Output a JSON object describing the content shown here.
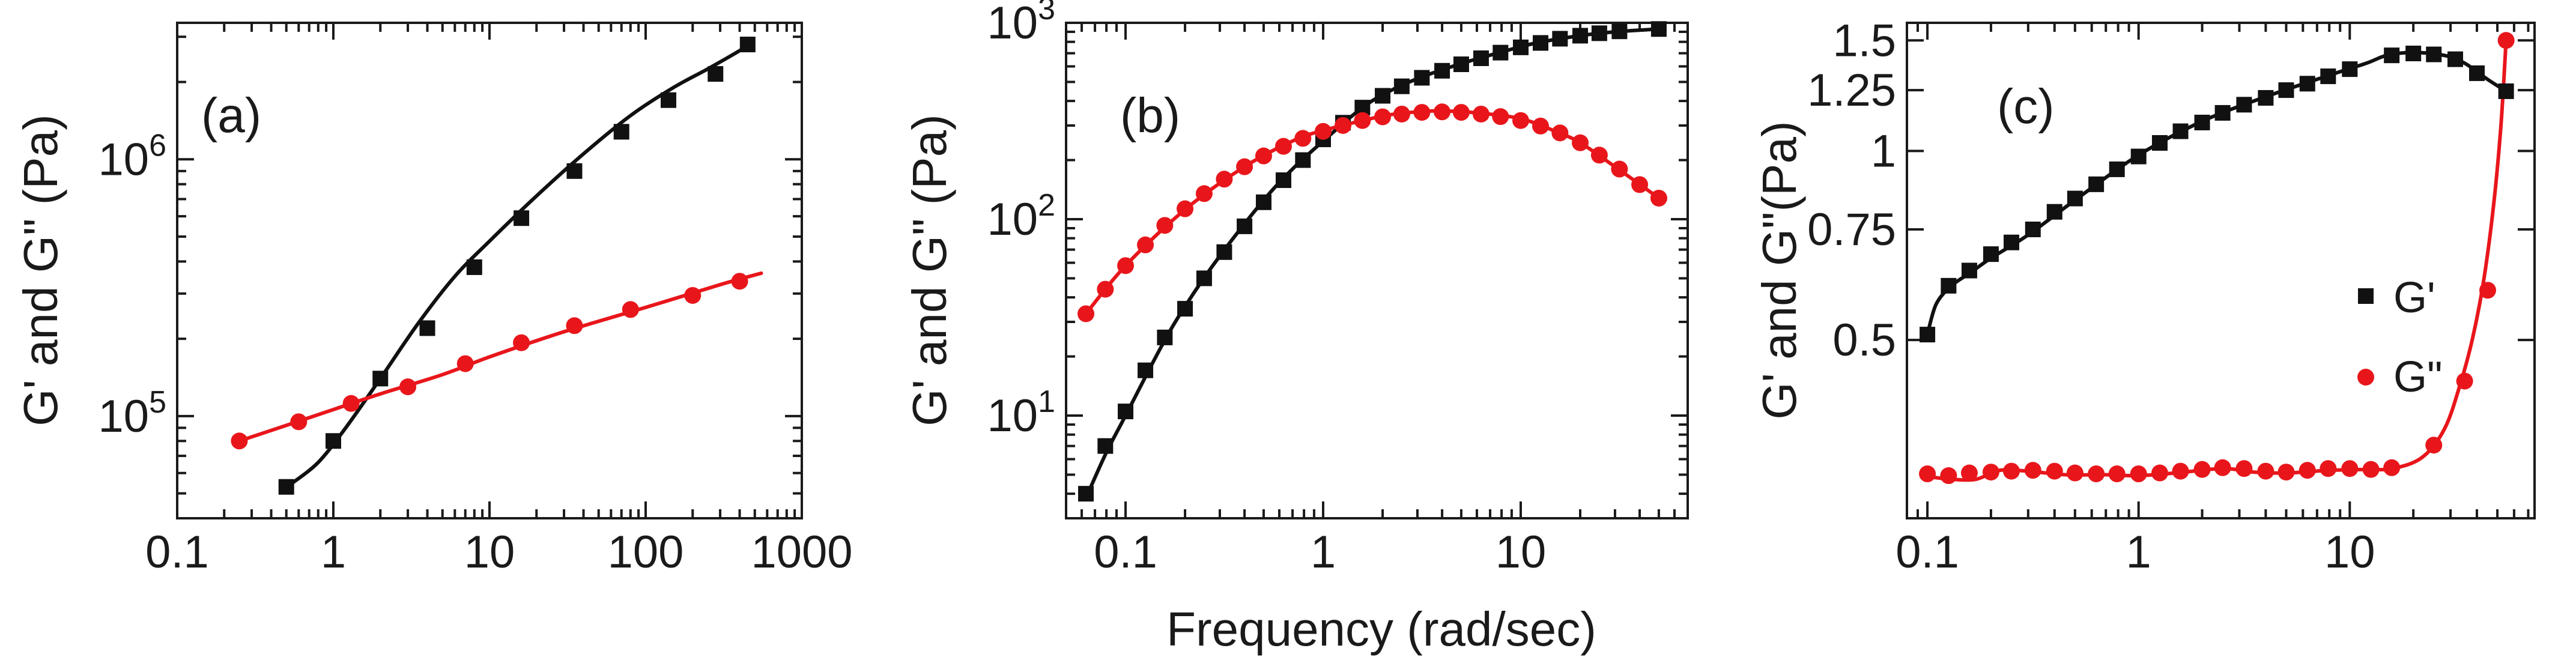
{
  "colors": {
    "series_1": "#111111",
    "series_2": "#e8161b",
    "axis": "#1a1a1a"
  },
  "chart_data": [
    {
      "type": "scatter",
      "panel_label": "(a)",
      "title": "",
      "xlabel": "",
      "ylabel": "G' and G\" (Pa)",
      "xscale": "log",
      "yscale": "log",
      "xlim": [
        0.1,
        1000
      ],
      "ylim": [
        40000,
        3400000
      ],
      "x_ticks": [
        {
          "value": 0.1,
          "label": "0.1"
        },
        {
          "value": 1,
          "label": "1"
        },
        {
          "value": 10,
          "label": "10"
        },
        {
          "value": 100,
          "label": "100"
        },
        {
          "value": 1000,
          "label": "1000"
        }
      ],
      "y_ticks": [
        {
          "value": 100000,
          "label": "10",
          "exponent": "5"
        },
        {
          "value": 1000000,
          "label": "10",
          "exponent": "6"
        }
      ],
      "series": [
        {
          "name": "G'",
          "marker": "square",
          "color": "#111111",
          "points": [
            [
              0.5,
              53000
            ],
            [
              1,
              80000
            ],
            [
              2,
              140000
            ],
            [
              4,
              220000
            ],
            [
              8,
              380000
            ],
            [
              16,
              590000
            ],
            [
              35,
              900000
            ],
            [
              70,
              1280000
            ],
            [
              140,
              1700000
            ],
            [
              280,
              2150000
            ],
            [
              450,
              2800000
            ]
          ],
          "fit": [
            [
              0.55,
              55000
            ],
            [
              0.8,
              66000
            ],
            [
              1.2,
              90000
            ],
            [
              2,
              140000
            ],
            [
              3.5,
              230000
            ],
            [
              6,
              350000
            ],
            [
              10,
              480000
            ],
            [
              20,
              720000
            ],
            [
              40,
              1050000
            ],
            [
              80,
              1480000
            ],
            [
              150,
              1900000
            ],
            [
              250,
              2250000
            ],
            [
              400,
              2650000
            ],
            [
              450,
              2800000
            ]
          ]
        },
        {
          "name": "G\"",
          "marker": "circle",
          "color": "#e8161b",
          "points": [
            [
              0.25,
              80000
            ],
            [
              0.6,
              95000
            ],
            [
              1.3,
              112000
            ],
            [
              3,
              130000
            ],
            [
              7,
              160000
            ],
            [
              16,
              193000
            ],
            [
              35,
              225000
            ],
            [
              80,
              260000
            ],
            [
              200,
              295000
            ],
            [
              400,
              335000
            ]
          ],
          "fit": [
            [
              0.25,
              80000
            ],
            [
              0.5,
              92000
            ],
            [
              1,
              106000
            ],
            [
              2,
              122000
            ],
            [
              5,
              145000
            ],
            [
              10,
              170000
            ],
            [
              30,
              213000
            ],
            [
              100,
              265000
            ],
            [
              300,
              325000
            ],
            [
              550,
              360000
            ]
          ]
        }
      ]
    },
    {
      "type": "scatter",
      "panel_label": "(b)",
      "title": "",
      "xlabel": "Frequency (rad/sec)",
      "ylabel": "G' and G\" (Pa)",
      "xscale": "log",
      "yscale": "log",
      "xlim": [
        0.05,
        70
      ],
      "ylim": [
        3,
        1000
      ],
      "x_ticks": [
        {
          "value": 0.1,
          "label": "0.1"
        },
        {
          "value": 1,
          "label": "1"
        },
        {
          "value": 10,
          "label": "10"
        }
      ],
      "y_ticks": [
        {
          "value": 10,
          "label": "10",
          "exponent": "1"
        },
        {
          "value": 100,
          "label": "10",
          "exponent": "2"
        },
        {
          "value": 1000,
          "label": "10",
          "exponent": "3"
        }
      ],
      "series": [
        {
          "name": "G'",
          "marker": "square",
          "color": "#111111",
          "points": [
            [
              0.063,
              4
            ],
            [
              0.079,
              7
            ],
            [
              0.1,
              10.5
            ],
            [
              0.126,
              17
            ],
            [
              0.158,
              25
            ],
            [
              0.2,
              35
            ],
            [
              0.25,
              50
            ],
            [
              0.316,
              68
            ],
            [
              0.4,
              92
            ],
            [
              0.5,
              122
            ],
            [
              0.63,
              158
            ],
            [
              0.79,
              200
            ],
            [
              1,
              255
            ],
            [
              1.26,
              310
            ],
            [
              1.58,
              370
            ],
            [
              2,
              425
            ],
            [
              2.5,
              475
            ],
            [
              3.16,
              525
            ],
            [
              4,
              570
            ],
            [
              5,
              615
            ],
            [
              6.3,
              660
            ],
            [
              7.9,
              705
            ],
            [
              10,
              750
            ],
            [
              12.6,
              790
            ],
            [
              15.8,
              830
            ],
            [
              20,
              860
            ],
            [
              25,
              885
            ],
            [
              31.6,
              905
            ],
            [
              50,
              930
            ]
          ],
          "fit": [
            [
              0.063,
              3.8
            ],
            [
              0.08,
              6.5
            ],
            [
              0.1,
              10
            ],
            [
              0.15,
              22
            ],
            [
              0.2,
              36
            ],
            [
              0.3,
              65
            ],
            [
              0.5,
              125
            ],
            [
              0.7,
              180
            ],
            [
              1,
              250
            ],
            [
              1.5,
              355
            ],
            [
              2,
              430
            ],
            [
              3,
              520
            ],
            [
              5,
              620
            ],
            [
              8,
              710
            ],
            [
              12,
              790
            ],
            [
              20,
              860
            ],
            [
              30,
              900
            ],
            [
              50,
              930
            ]
          ]
        },
        {
          "name": "G\"",
          "marker": "circle",
          "color": "#e8161b",
          "points": [
            [
              0.063,
              33
            ],
            [
              0.079,
              44
            ],
            [
              0.1,
              58
            ],
            [
              0.126,
              74
            ],
            [
              0.158,
              93
            ],
            [
              0.2,
              113
            ],
            [
              0.25,
              135
            ],
            [
              0.316,
              160
            ],
            [
              0.4,
              185
            ],
            [
              0.5,
              210
            ],
            [
              0.63,
              235
            ],
            [
              0.79,
              258
            ],
            [
              1,
              280
            ],
            [
              1.26,
              300
            ],
            [
              1.58,
              318
            ],
            [
              2,
              332
            ],
            [
              2.5,
              343
            ],
            [
              3.16,
              350
            ],
            [
              4,
              352
            ],
            [
              5,
              350
            ],
            [
              6.3,
              343
            ],
            [
              7.9,
              333
            ],
            [
              10,
              318
            ],
            [
              12.6,
              298
            ],
            [
              15.8,
              275
            ],
            [
              20,
              245
            ],
            [
              25,
              212
            ],
            [
              31.6,
              180
            ],
            [
              40,
              150
            ],
            [
              50,
              128
            ]
          ],
          "fit": [
            [
              0.063,
              33
            ],
            [
              0.1,
              58
            ],
            [
              0.2,
              112
            ],
            [
              0.4,
              185
            ],
            [
              0.7,
              250
            ],
            [
              1,
              283
            ],
            [
              2,
              335
            ],
            [
              3,
              352
            ],
            [
              4,
              356
            ],
            [
              6,
              348
            ],
            [
              10,
              325
            ],
            [
              15,
              280
            ],
            [
              20,
              245
            ],
            [
              30,
              185
            ],
            [
              50,
              128
            ]
          ]
        }
      ]
    },
    {
      "type": "scatter",
      "panel_label": "(c)",
      "title": "",
      "xlabel": "",
      "ylabel": "G' and G\"(Pa)",
      "xscale": "log",
      "yscale": "log",
      "xlim": [
        0.08,
        75
      ],
      "ylim": [
        0.26,
        1.6
      ],
      "x_ticks": [
        {
          "value": 0.1,
          "label": "0.1"
        },
        {
          "value": 1,
          "label": "1"
        },
        {
          "value": 10,
          "label": "10"
        }
      ],
      "y_ticks": [
        {
          "value": 0.5,
          "label": "0.5"
        },
        {
          "value": 0.75,
          "label": "0.75"
        },
        {
          "value": 1,
          "label": "1"
        },
        {
          "value": 1.25,
          "label": "1.25"
        },
        {
          "value": 1.5,
          "label": "1.5"
        }
      ],
      "legend": {
        "position": "center-right",
        "entries": [
          "G'",
          "G\""
        ]
      },
      "series": [
        {
          "name": "G'",
          "marker": "square",
          "color": "#111111",
          "points": [
            [
              0.1,
              0.51
            ],
            [
              0.126,
              0.61
            ],
            [
              0.158,
              0.645
            ],
            [
              0.2,
              0.685
            ],
            [
              0.25,
              0.715
            ],
            [
              0.316,
              0.75
            ],
            [
              0.4,
              0.8
            ],
            [
              0.5,
              0.84
            ],
            [
              0.63,
              0.885
            ],
            [
              0.79,
              0.935
            ],
            [
              1,
              0.98
            ],
            [
              1.26,
              1.03
            ],
            [
              1.58,
              1.075
            ],
            [
              2,
              1.11
            ],
            [
              2.5,
              1.15
            ],
            [
              3.16,
              1.185
            ],
            [
              4,
              1.215
            ],
            [
              5,
              1.25
            ],
            [
              6.3,
              1.28
            ],
            [
              7.9,
              1.315
            ],
            [
              10,
              1.35
            ],
            [
              15.8,
              1.42
            ],
            [
              20,
              1.43
            ],
            [
              25,
              1.425
            ],
            [
              31.6,
              1.4
            ],
            [
              40,
              1.33
            ],
            [
              55,
              1.245
            ]
          ],
          "fit": [
            [
              0.1,
              0.51
            ],
            [
              0.11,
              0.57
            ],
            [
              0.13,
              0.61
            ],
            [
              0.16,
              0.64
            ],
            [
              0.2,
              0.675
            ],
            [
              0.3,
              0.735
            ],
            [
              0.5,
              0.835
            ],
            [
              1,
              0.985
            ],
            [
              2,
              1.115
            ],
            [
              4,
              1.22
            ],
            [
              8,
              1.32
            ],
            [
              12,
              1.38
            ],
            [
              15,
              1.42
            ],
            [
              20,
              1.435
            ],
            [
              28,
              1.42
            ],
            [
              35,
              1.38
            ],
            [
              45,
              1.3
            ],
            [
              55,
              1.245
            ]
          ]
        },
        {
          "name": "G\"",
          "marker": "circle",
          "color": "#e8161b",
          "points": [
            [
              0.1,
              0.306
            ],
            [
              0.126,
              0.304
            ],
            [
              0.158,
              0.307
            ],
            [
              0.2,
              0.308
            ],
            [
              0.25,
              0.309
            ],
            [
              0.316,
              0.31
            ],
            [
              0.4,
              0.309
            ],
            [
              0.5,
              0.307
            ],
            [
              0.63,
              0.306
            ],
            [
              0.79,
              0.306
            ],
            [
              1,
              0.306
            ],
            [
              1.26,
              0.307
            ],
            [
              1.58,
              0.309
            ],
            [
              2,
              0.311
            ],
            [
              2.5,
              0.313
            ],
            [
              3.16,
              0.312
            ],
            [
              4,
              0.309
            ],
            [
              5,
              0.308
            ],
            [
              6.3,
              0.31
            ],
            [
              7.9,
              0.312
            ],
            [
              10,
              0.312
            ],
            [
              12.6,
              0.311
            ],
            [
              15.8,
              0.313
            ],
            [
              25,
              0.34
            ],
            [
              35,
              0.43
            ],
            [
              45,
              0.6
            ],
            [
              55,
              1.5
            ]
          ],
          "fit": [
            [
              0.1,
              0.303
            ],
            [
              0.13,
              0.3
            ],
            [
              0.17,
              0.3
            ],
            [
              0.22,
              0.31
            ],
            [
              0.3,
              0.309
            ],
            [
              0.45,
              0.305
            ],
            [
              0.7,
              0.305
            ],
            [
              1,
              0.304
            ],
            [
              1.5,
              0.307
            ],
            [
              2.5,
              0.312
            ],
            [
              3.5,
              0.308
            ],
            [
              5,
              0.307
            ],
            [
              8,
              0.31
            ],
            [
              12,
              0.311
            ],
            [
              16,
              0.312
            ],
            [
              22,
              0.325
            ],
            [
              28,
              0.36
            ],
            [
              33,
              0.42
            ],
            [
              38,
              0.5
            ],
            [
              43,
              0.62
            ],
            [
              48,
              0.82
            ],
            [
              52,
              1.1
            ],
            [
              55,
              1.5
            ]
          ]
        }
      ]
    }
  ]
}
